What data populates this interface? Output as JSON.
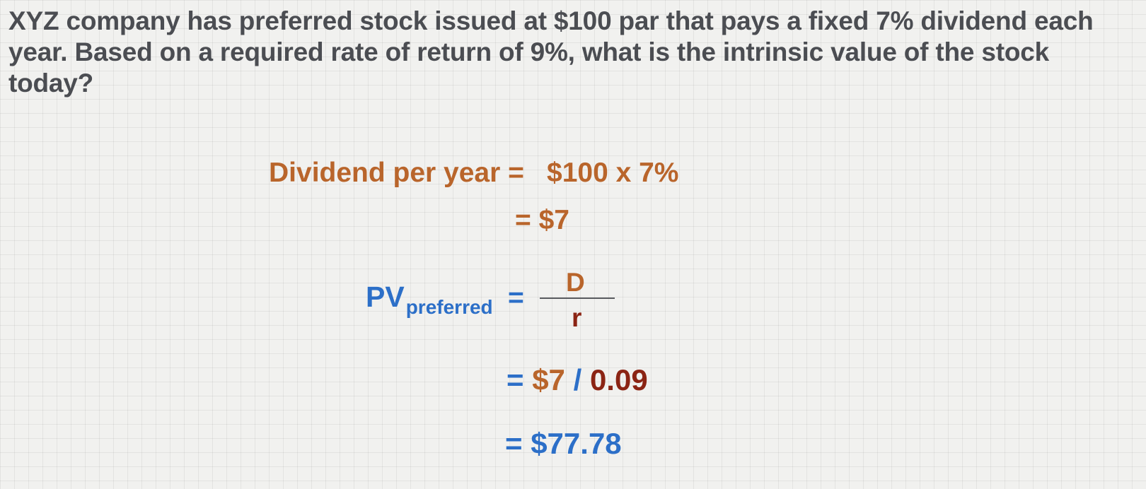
{
  "question": "XYZ company has preferred stock issued at $100 par that pays a fixed 7% dividend each year.  Based on a required rate of return of 9%, what is the intrinsic value of the stock today?",
  "dividend": {
    "label": "Dividend per year =",
    "calculation": "$100 x 7%",
    "result": "= $7"
  },
  "formula": {
    "pv_main": "PV",
    "pv_subscript": "preferred",
    "equals": "=",
    "numerator": "D",
    "denominator": "r"
  },
  "substitution": {
    "equals": "=",
    "dividend": "$7",
    "operator": "/",
    "rate": "0.09"
  },
  "answer": {
    "equals": "=",
    "value": "$77.78"
  },
  "colors": {
    "question_text": "#4b4d52",
    "orange": "#b9652b",
    "maroon": "#8b2414",
    "blue": "#2c6fc8",
    "grid_background": "#f1f1ef"
  }
}
